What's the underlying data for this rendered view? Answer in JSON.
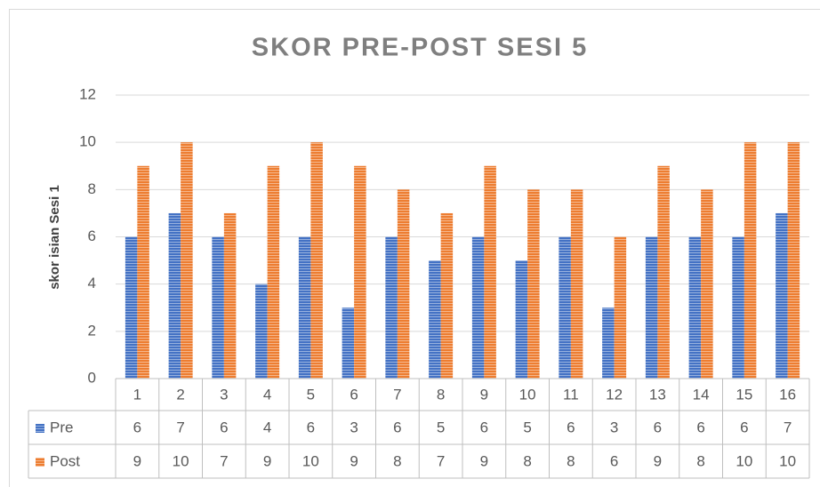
{
  "chart_data": {
    "type": "bar",
    "title": "SKOR PRE-POST SESI 5",
    "y_label": "skor isian Sesi 1",
    "categories": [
      "1",
      "2",
      "3",
      "4",
      "5",
      "6",
      "7",
      "8",
      "9",
      "10",
      "11",
      "12",
      "13",
      "14",
      "15",
      "16"
    ],
    "series": [
      {
        "name": "Pre",
        "color": "#4472c4",
        "values": [
          6,
          7,
          6,
          4,
          6,
          3,
          6,
          5,
          6,
          5,
          6,
          3,
          6,
          6,
          6,
          7
        ]
      },
      {
        "name": "Post",
        "color": "#ed7d31",
        "values": [
          9,
          10,
          7,
          9,
          10,
          9,
          8,
          7,
          9,
          8,
          8,
          6,
          9,
          8,
          10,
          10
        ]
      }
    ],
    "ylim": [
      0,
      12
    ],
    "yticks": [
      0,
      2,
      4,
      6,
      8,
      10,
      12
    ],
    "grid": true,
    "data_table": true
  }
}
